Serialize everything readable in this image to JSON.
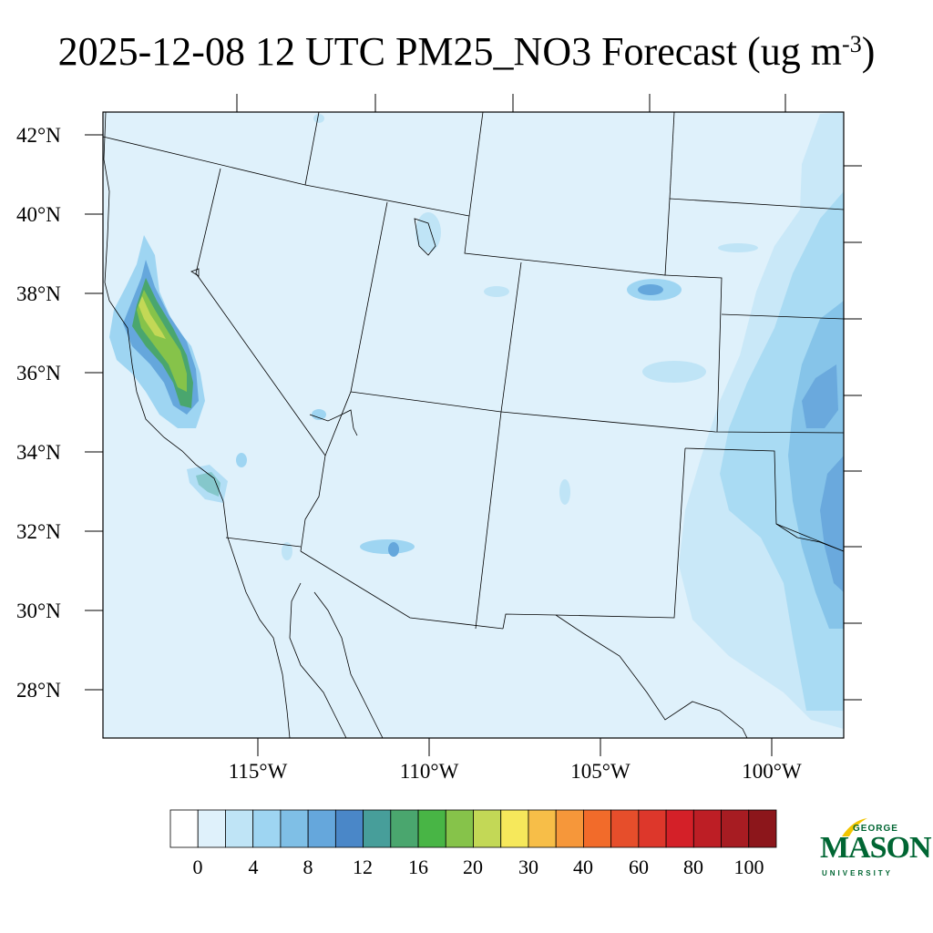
{
  "title": {
    "text": "2025-12-08 12 UTC PM25_NO3 Forecast (ug m",
    "superscript": "-3",
    "close": ")"
  },
  "map": {
    "background_color": "#dff1fb",
    "lat_labels": [
      "42°N",
      "40°N",
      "38°N",
      "36°N",
      "34°N",
      "32°N",
      "30°N",
      "28°N"
    ],
    "lon_labels": [
      "115°W",
      "110°W",
      "105°W",
      "100°W"
    ]
  },
  "colorbar": {
    "colors": [
      "#ffffff",
      "#dff1fb",
      "#bfe4f6",
      "#9ed5f2",
      "#7fbfe6",
      "#65a7dc",
      "#4a87c8",
      "#479e9a",
      "#4aa66e",
      "#48b545",
      "#86c34a",
      "#c3d856",
      "#f6e85b",
      "#f7be48",
      "#f6973a",
      "#f26b2a",
      "#e64e2b",
      "#dd372b",
      "#d42028",
      "#bd1e25",
      "#a71c22",
      "#8c161b"
    ],
    "labels": [
      "0",
      "4",
      "8",
      "12",
      "16",
      "20",
      "30",
      "40",
      "60",
      "80",
      "100"
    ]
  },
  "logo": {
    "george": "GEORGE",
    "mason": "MASON",
    "university": "UNIVERSITY",
    "color": "#006633",
    "accent": "#f2c500"
  }
}
